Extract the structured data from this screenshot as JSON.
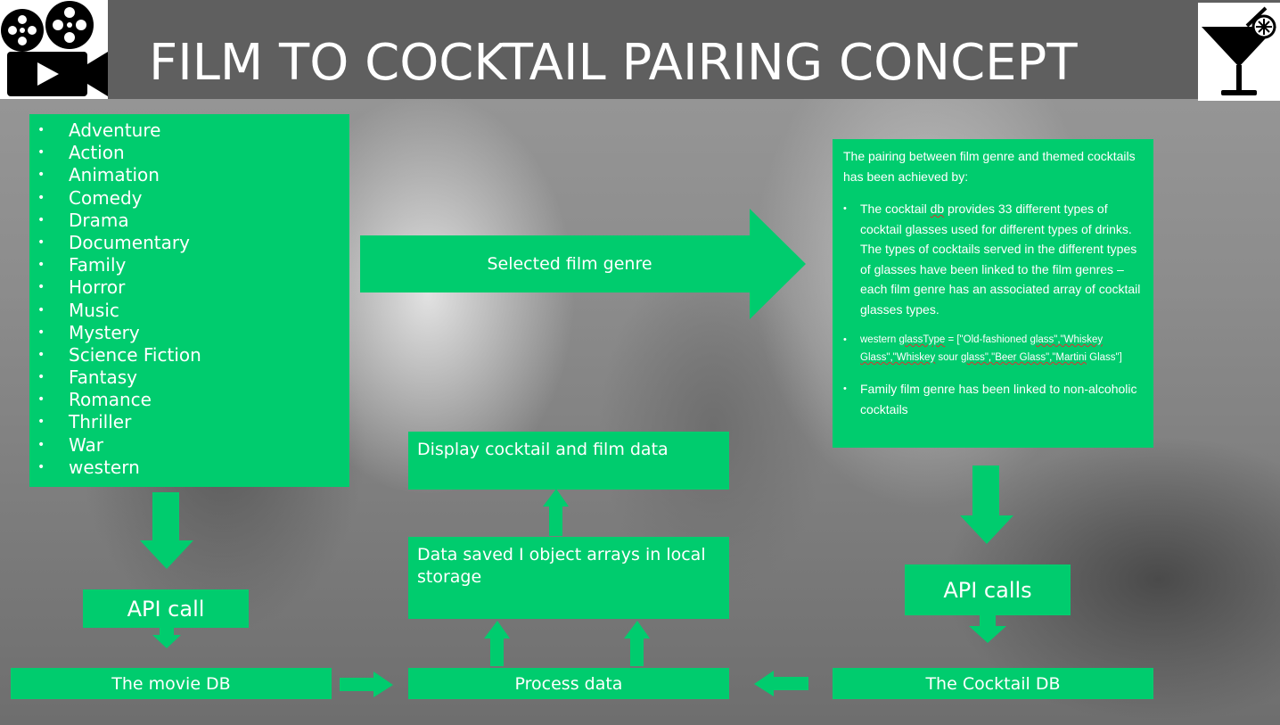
{
  "header": {
    "title": "FILM TO COCKTAIL PAIRING CONCEPT"
  },
  "icons": {
    "left": "film-camera-icon",
    "right": "cocktail-glass-icon"
  },
  "colors": {
    "box": "#00cc6e",
    "header": "#5f5f5f",
    "text": "#ffffff"
  },
  "genres": [
    "Adventure",
    "Action",
    "Animation",
    "Comedy",
    "Drama",
    "Documentary",
    "Family",
    "Horror",
    "Music",
    "Mystery",
    "Science Fiction",
    "Fantasy",
    "Romance",
    "Thriller",
    "War",
    "western"
  ],
  "boxes": {
    "selected_genre": "Selected film genre",
    "api_call": "API call",
    "movie_db": "The movie DB",
    "process_data": "Process data",
    "data_saved": "Data saved I object arrays in local storage",
    "display": "Display cocktail and film data",
    "api_calls": "API calls",
    "cocktail_db": "The Cocktail DB"
  },
  "description": {
    "intro": "The pairing between film genre and themed cocktails has been achieved by:",
    "bullet1_pre": "The cocktail ",
    "bullet1_db": "db",
    "bullet1_post": " provides 33 different types of cocktail glasses used for different types of drinks.  The types of cocktails served in the different types of glasses have been linked to the film genres – each film genre has an associated array of cocktail glasses types.",
    "bullet2_a": "western   ",
    "bullet2_b": "glassType",
    "bullet2_c": " = [\"Old-fashioned ",
    "bullet2_d": "glass\",\"Whiskey Glass\",\"Whiskey",
    "bullet2_e": " sour ",
    "bullet2_f": "glass\",\"Beer Glass\",\"Martini",
    "bullet2_g": " Glass\"]",
    "bullet3": "Family film genre has been linked to non-alcoholic cocktails"
  }
}
